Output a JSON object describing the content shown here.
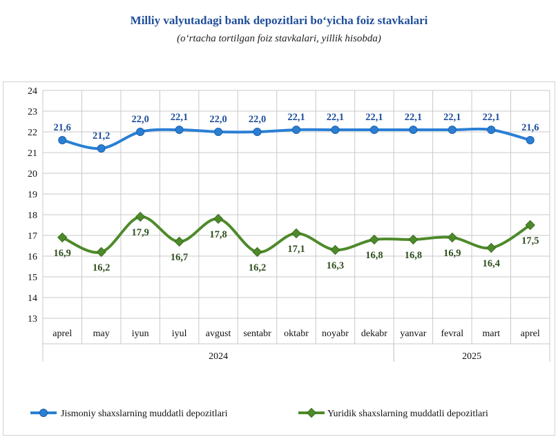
{
  "title": "Milliy valyutadagi bank depozitlari  bo‘yicha  foiz  stavkalari",
  "subtitle": "(o‘rtacha tortilgan foiz stavkalari, yillik hisobda)",
  "colors": {
    "series1": "#2a7fd4",
    "series2": "#4e8a2a",
    "label1": "#1f4e9a",
    "label2": "#2f4f1f",
    "grid": "#c8c8c8"
  },
  "chart_data": {
    "type": "line",
    "categories": [
      "aprel",
      "may",
      "iyun",
      "iyul",
      "avgust",
      "sentabr",
      "oktabr",
      "noyabr",
      "dekabr",
      "yanvar",
      "fevral",
      "mart",
      "aprel"
    ],
    "year_groups": [
      {
        "label": "2024",
        "start": 0,
        "end": 8
      },
      {
        "label": "2025",
        "start": 9,
        "end": 12
      }
    ],
    "ylim": [
      13,
      24
    ],
    "yticks": [
      13,
      14,
      15,
      16,
      17,
      18,
      19,
      20,
      21,
      22,
      23,
      24
    ],
    "grid": true,
    "legend_position": "bottom",
    "series": [
      {
        "name": "Jismoniy shaxslarning muddatli depozitlari",
        "marker": "circle",
        "values": [
          21.6,
          21.2,
          22.0,
          22.1,
          22.0,
          22.0,
          22.1,
          22.1,
          22.1,
          22.1,
          22.1,
          22.1,
          21.6
        ],
        "labels": [
          "21,6",
          "21,2",
          "22,0",
          "22,1",
          "22,0",
          "22,0",
          "22,1",
          "22,1",
          "22,1",
          "22,1",
          "22,1",
          "22,1",
          "21,6"
        ],
        "label_position": "above"
      },
      {
        "name": "Yuridik shaxslarning muddatli depozitlari",
        "marker": "diamond",
        "values": [
          16.9,
          16.2,
          17.9,
          16.7,
          17.8,
          16.2,
          17.1,
          16.3,
          16.8,
          16.8,
          16.9,
          16.4,
          17.5
        ],
        "labels": [
          "16,9",
          "16,2",
          "17,9",
          "16,7",
          "17,8",
          "16,2",
          "17,1",
          "16,3",
          "16,8",
          "16,8",
          "16,9",
          "16,4",
          "17,5"
        ],
        "label_position": "below"
      }
    ]
  }
}
